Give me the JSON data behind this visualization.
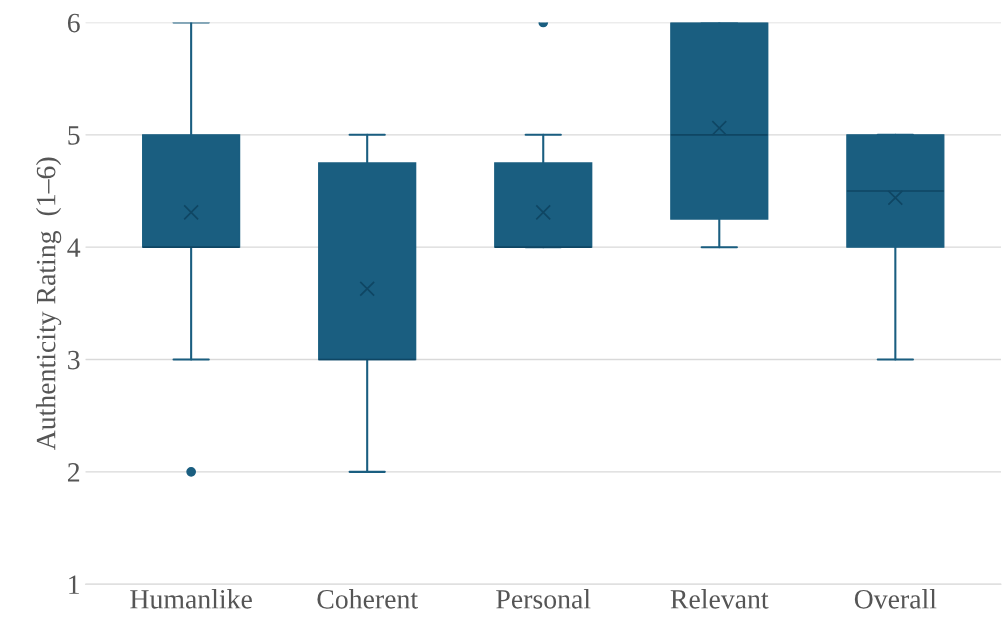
{
  "chart_data": {
    "type": "box",
    "ylabel": "Authenticity Rating  (1–6)",
    "categories": [
      "Humanlike",
      "Coherent",
      "Personal",
      "Relevant",
      "Overall"
    ],
    "color": "#1a5e80",
    "ylim": [
      1,
      6
    ],
    "yticks": [
      1,
      2,
      3,
      4,
      5,
      6
    ],
    "grid": "y",
    "boxes": [
      {
        "low": 3,
        "q1": 4,
        "median": 4,
        "q3": 5,
        "high": 6,
        "mean": 4.31,
        "outliers": [
          2
        ]
      },
      {
        "low": 2,
        "q1": 3,
        "median": 3,
        "q3": 4.75,
        "high": 5,
        "mean": 3.63
      },
      {
        "low": 4,
        "q1": 4,
        "median": 4,
        "q3": 4.75,
        "high": 5,
        "mean": 4.31,
        "outliers": [
          6
        ]
      },
      {
        "low": 4,
        "q1": 4.25,
        "median": 5,
        "q3": 6,
        "high": 6,
        "mean": 5.06
      },
      {
        "low": 3,
        "q1": 4,
        "median": 4.5,
        "q3": 5,
        "high": 5,
        "mean": 4.44
      }
    ]
  }
}
